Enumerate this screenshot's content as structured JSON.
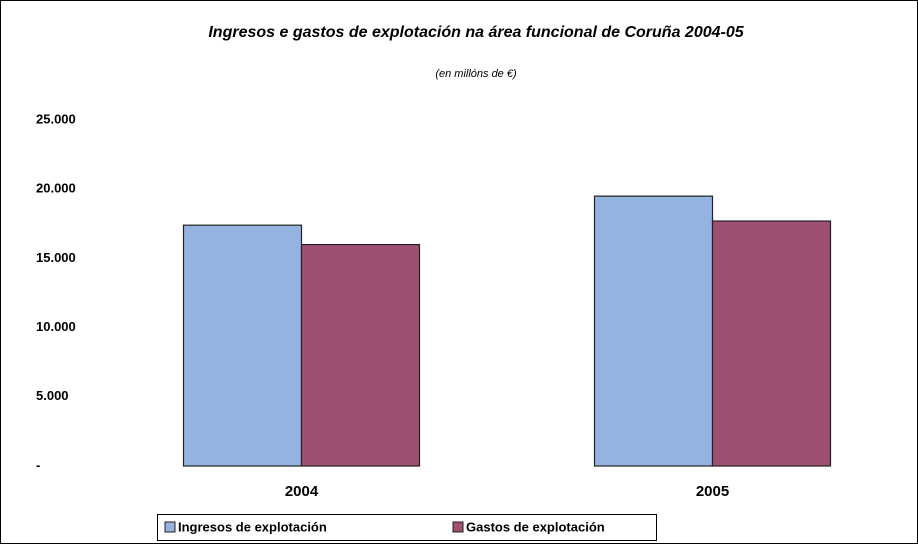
{
  "chart_data": {
    "type": "bar",
    "title": "Ingresos e gastos de explotación na área funcional de Coruña 2004-05",
    "subtitle": "(en millóns de €)",
    "categories": [
      "2004",
      "2005"
    ],
    "series": [
      {
        "name": "Ingresos de explotación",
        "color": "#95b3e0",
        "values": [
          17400,
          19500
        ]
      },
      {
        "name": "Gastos de explotación",
        "color": "#9e4f72",
        "values": [
          16000,
          17700
        ]
      }
    ],
    "ylim": [
      0,
      25000
    ],
    "yticks": [
      {
        "value": 0,
        "label": "-"
      },
      {
        "value": 5000,
        "label": "5.000"
      },
      {
        "value": 10000,
        "label": "10.000"
      },
      {
        "value": 15000,
        "label": "15.000"
      },
      {
        "value": 20000,
        "label": "20.000"
      },
      {
        "value": 25000,
        "label": "25.000"
      }
    ],
    "grid": false,
    "legend": "bottom"
  }
}
